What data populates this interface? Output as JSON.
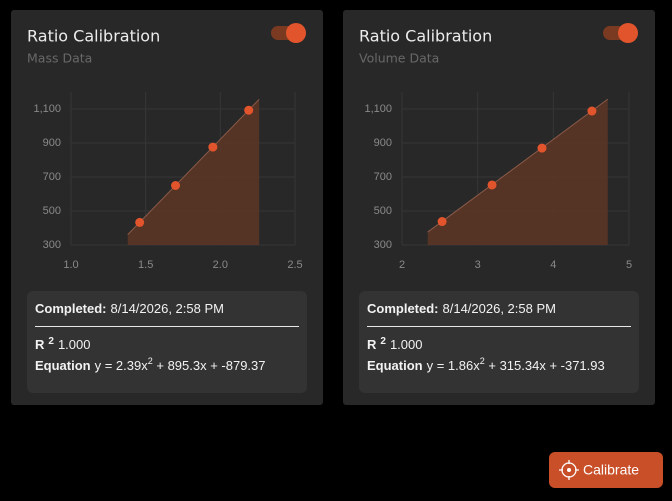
{
  "chart_data": [
    {
      "type": "scatter",
      "title": "Ratio Calibration",
      "subtitle": "Mass Data",
      "toggle_on": true,
      "x": [
        1.46,
        1.7,
        1.95,
        2.19
      ],
      "values": [
        433,
        650,
        876,
        1093
      ],
      "color": "#e2552c",
      "fit": {
        "x": [
          1.38,
          2.26
        ],
        "values": [
          361,
          1157
        ],
        "color": "#5a3425"
      },
      "xlim": [
        1.0,
        2.5
      ],
      "xticks": [
        {
          "value": 1.0,
          "label": "1.0"
        },
        1.5,
        {
          "value": 2.0,
          "label": "2.0"
        },
        2.5
      ],
      "ylim": [
        300,
        1200
      ],
      "yticks": [
        300,
        500,
        700,
        900,
        {
          "value": 1100,
          "label": "1,100"
        }
      ],
      "grid": true
    },
    {
      "type": "scatter",
      "title": "Ratio Calibration",
      "subtitle": "Volume Data",
      "toggle_on": true,
      "x": [
        2.53,
        3.19,
        3.85,
        4.51
      ],
      "values": [
        438,
        653,
        870,
        1088
      ],
      "color": "#e2552c",
      "fit": {
        "x": [
          2.34,
          4.72
        ],
        "values": [
          376,
          1158
        ],
        "color": "#5a3425"
      },
      "xlim": [
        2,
        5
      ],
      "xticks": [
        2,
        3,
        4,
        5
      ],
      "ylim": [
        300,
        1200
      ],
      "yticks": [
        300,
        500,
        700,
        900,
        {
          "value": 1100,
          "label": "1,100"
        }
      ],
      "grid": true
    }
  ],
  "cards": [
    {
      "completed_label": "Completed:",
      "completed_value": "8/14/2026, 2:58 PM",
      "r2_label": "R",
      "r2_sup": "2",
      "r2_value": "1.000",
      "equation_label": "Equation",
      "equation_parts": [
        "y = 2.39x",
        "2",
        " + 895.3x + -879.37"
      ]
    },
    {
      "completed_label": "Completed:",
      "completed_value": "8/14/2026, 2:58 PM",
      "r2_label": "R",
      "r2_sup": "2",
      "r2_value": "1.000",
      "equation_label": "Equation",
      "equation_parts": [
        "y = 1.86x",
        "2",
        " + 315.34x + -371.93"
      ]
    }
  ],
  "button": {
    "label": "Calibrate"
  }
}
